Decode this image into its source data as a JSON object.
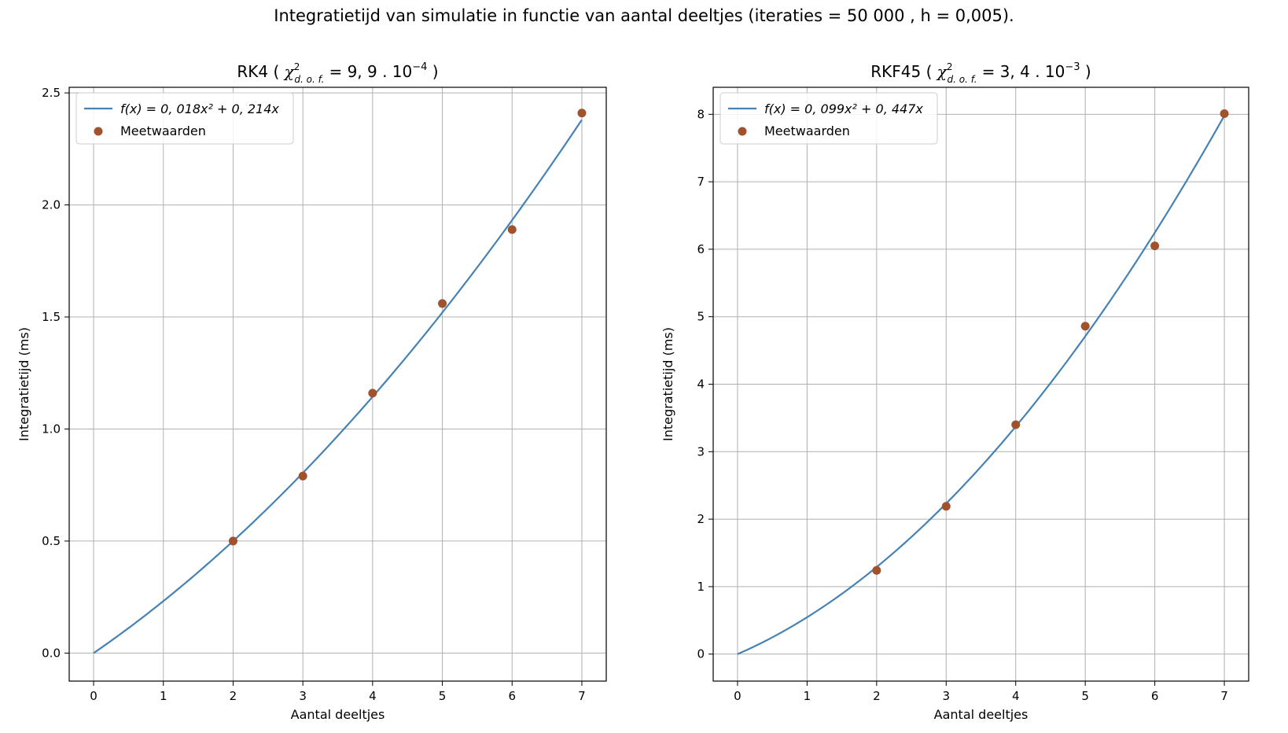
{
  "figure": {
    "suptitle": "Integratietijd van simulatie in functie van aantal deeltjes (iteraties = 50 000 , h = 0,005)."
  },
  "colors": {
    "fit_line": "#4682b4",
    "points": "#a0522d",
    "grid": "#b0b0b0"
  },
  "chart_data": [
    {
      "type": "scatter",
      "title_prefix": "RK4 (",
      "title_chi_value": "= 9, 9 . 10",
      "title_exponent": "−4",
      "title_suffix": ")",
      "xlabel": "Aantal deeltjes",
      "ylabel": "Integratietijd (ms)",
      "xlim": [
        -0.35,
        7.35
      ],
      "ylim": [
        -0.125,
        2.525
      ],
      "xticks": [
        0,
        1,
        2,
        3,
        4,
        5,
        6,
        7
      ],
      "yticks": [
        0.0,
        0.5,
        1.0,
        1.5,
        2.0,
        2.5
      ],
      "ytick_labels": [
        "0.0",
        "0.5",
        "1.0",
        "1.5",
        "2.0",
        "2.5"
      ],
      "grid": true,
      "legend_position": "top-left",
      "fit": {
        "a": 0.018,
        "b": 0.214,
        "x_range": [
          0,
          7
        ],
        "legend_label": "f(x) = 0, 018x² + 0, 214x"
      },
      "series": [
        {
          "name": "Meetwaarden",
          "x": [
            2,
            3,
            4,
            5,
            6,
            7
          ],
          "y": [
            0.5,
            0.79,
            1.16,
            1.56,
            1.89,
            2.41
          ]
        }
      ]
    },
    {
      "type": "scatter",
      "title_prefix": "RKF45 (",
      "title_chi_value": "= 3, 4 . 10",
      "title_exponent": "−3",
      "title_suffix": ")",
      "xlabel": "Aantal deeltjes",
      "ylabel": "Integratietijd (ms)",
      "xlim": [
        -0.35,
        7.35
      ],
      "ylim": [
        -0.4,
        8.4
      ],
      "xticks": [
        0,
        1,
        2,
        3,
        4,
        5,
        6,
        7
      ],
      "yticks": [
        0,
        1,
        2,
        3,
        4,
        5,
        6,
        7,
        8
      ],
      "ytick_labels": [
        "0",
        "1",
        "2",
        "3",
        "4",
        "5",
        "6",
        "7",
        "8"
      ],
      "grid": true,
      "legend_position": "top-left",
      "fit": {
        "a": 0.099,
        "b": 0.447,
        "x_range": [
          0,
          7
        ],
        "legend_label": "f(x) = 0, 099x² + 0, 447x"
      },
      "series": [
        {
          "name": "Meetwaarden",
          "x": [
            2,
            3,
            4,
            5,
            6,
            7
          ],
          "y": [
            1.24,
            2.19,
            3.4,
            4.86,
            6.05,
            8.01
          ]
        }
      ]
    }
  ]
}
